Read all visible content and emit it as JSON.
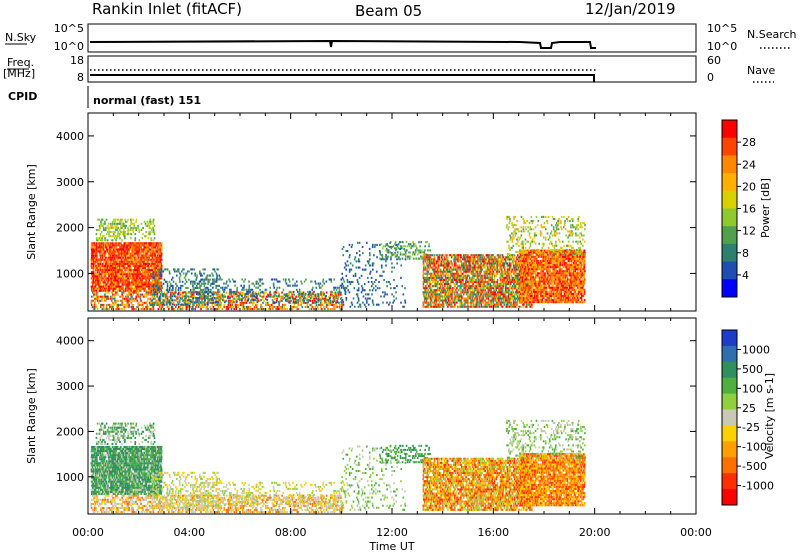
{
  "header": {
    "station": "Rankin Inlet (fitACF)",
    "beam": "Beam 05",
    "date": "12/Jan/2019"
  },
  "top_panels": {
    "nsky_label": "N.Sky",
    "nsky_ticks": [
      "10^5",
      "10^0"
    ],
    "nsearch_label": "N.Search",
    "nsearch_ticks": [
      "10^5",
      "10^0"
    ],
    "freq_label": "Freq.",
    "freq_unit": "[MHz]",
    "freq_ticks": [
      "18",
      "8"
    ],
    "nave_label": "Nave",
    "nave_ticks": [
      "60",
      "0"
    ],
    "cpid_label": "CPID",
    "cpid_text": "normal (fast) 151"
  },
  "chart_data": [
    {
      "type": "heatmap",
      "name": "power",
      "ylabel": "Slant Range [km]",
      "colorbar_label": "Power [dB]",
      "colorbar_ticks": [
        "28",
        "24",
        "20",
        "16",
        "12",
        "8",
        "4"
      ],
      "colorbar_colors": [
        "#ff0000",
        "#ff4400",
        "#ff8800",
        "#ffb000",
        "#d8d000",
        "#90c830",
        "#50a050",
        "#2f7f70",
        "#1e4fb0",
        "#0000ff"
      ],
      "xlim": [
        "00:00",
        "24:00"
      ],
      "ylim": [
        180,
        4500
      ],
      "yticks": [
        1000,
        2000,
        3000,
        4000
      ],
      "grid": false
    },
    {
      "type": "heatmap",
      "name": "velocity",
      "ylabel": "Slant Range [km]",
      "colorbar_label": "Velocity [m s-1]",
      "colorbar_ticks": [
        "1000",
        "500",
        "100",
        "25",
        "-25",
        "-100",
        "-500",
        "-1000"
      ],
      "colorbar_colors": [
        "#1e3cc8",
        "#2f6fb0",
        "#2f8f60",
        "#4fb040",
        "#90d040",
        "#c8c8b4",
        "#ffd000",
        "#ffa000",
        "#ff7000",
        "#ff3000",
        "#ff0000"
      ],
      "xlabel": "Time UT",
      "xticks": [
        "00:00",
        "04:00",
        "08:00",
        "12:00",
        "16:00",
        "20:00",
        "00:00"
      ],
      "xlim": [
        "00:00",
        "24:00"
      ],
      "ylim": [
        180,
        4500
      ],
      "yticks": [
        1000,
        2000,
        3000,
        4000
      ],
      "grid": false
    }
  ]
}
